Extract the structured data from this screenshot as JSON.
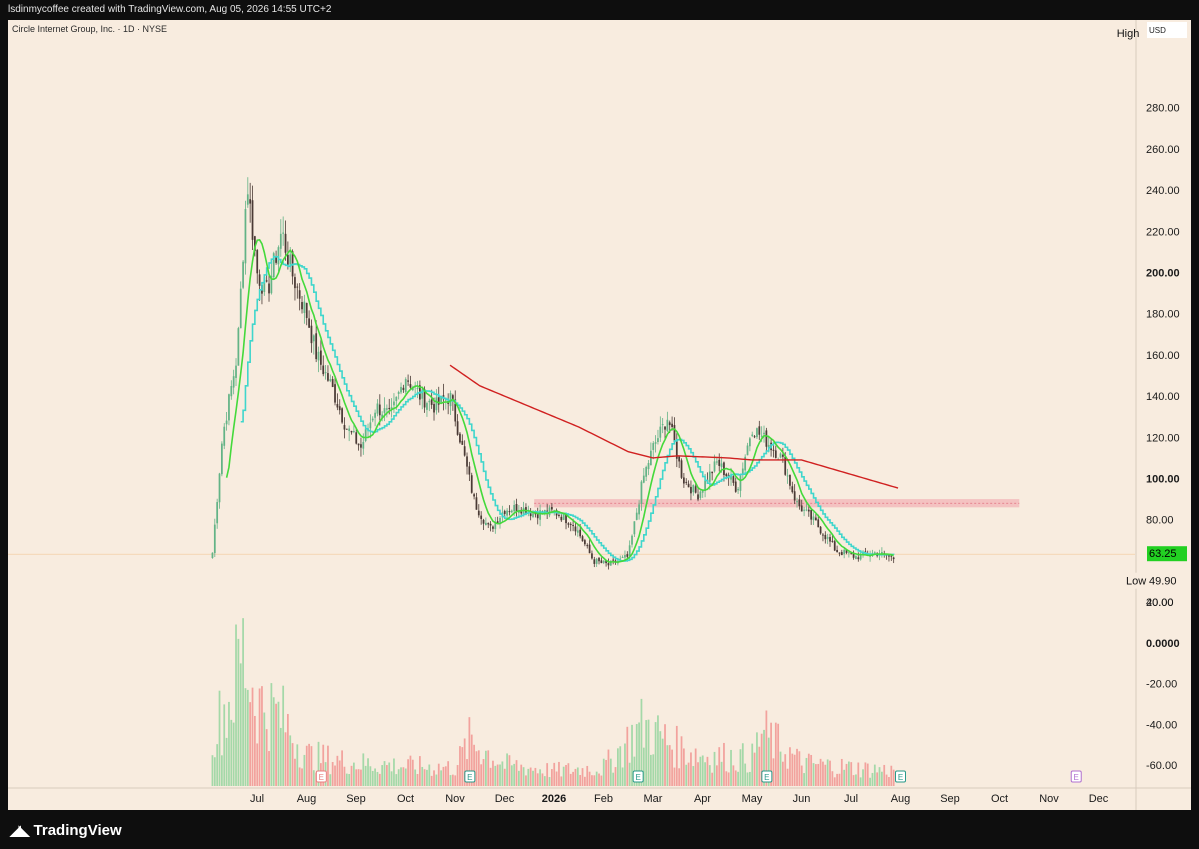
{
  "header": {
    "attribution": "lsdinmycoffee created with TradingView.com, Aug 05, 2026 14:55 UTC+2"
  },
  "chart_title": "Circle Internet Group, Inc. · 1D · NYSE",
  "footer": {
    "brand": "TradingView"
  },
  "colors": {
    "background": "#f8ecdf",
    "up": "#63b386",
    "down": "#4a3a35",
    "ma_fast": "#44d93b",
    "ma_slow": "#3fd6cc",
    "ma_long": "#d02020",
    "zone": "#f0a0a8",
    "last_price_badge": "#22d022"
  },
  "chart_data": {
    "type": "candlestick",
    "price_axis": {
      "currency": "USD",
      "ticks": [
        280,
        260,
        240,
        220,
        200,
        180,
        160,
        140,
        120,
        100,
        80,
        40,
        20,
        0,
        -20,
        -40,
        -60
      ],
      "tick_labels": [
        "280.00",
        "260.00",
        "240.00",
        "220.00",
        "200.00",
        "180.00",
        "160.00",
        "140.00",
        "120.00",
        "100.00",
        "80.00",
        "40.00",
        "20.00",
        "0.0000",
        "-20.00",
        "-40.00",
        "-60.00"
      ],
      "bold_ticks": [
        200,
        100,
        0
      ],
      "high_label": "High",
      "low_label": "Low",
      "low_value": "49.90",
      "last_price": "63.25",
      "last_price_value": 63.25
    },
    "time_axis": {
      "labels": [
        "Jul",
        "Aug",
        "Sep",
        "Oct",
        "Nov",
        "Dec",
        "2026",
        "Feb",
        "Mar",
        "Apr",
        "May",
        "Jun",
        "Jul",
        "Aug",
        "Sep",
        "Oct",
        "Nov",
        "Dec"
      ],
      "positions": [
        0,
        1,
        2,
        3,
        4,
        5,
        6,
        7,
        8,
        9,
        10,
        11,
        12,
        13,
        14,
        15,
        16,
        17
      ],
      "bold": [
        "2026"
      ]
    },
    "price_path_monthly": [
      {
        "m": -0.9,
        "c": 64
      },
      {
        "m": -0.7,
        "c": 120
      },
      {
        "m": -0.4,
        "c": 160
      },
      {
        "m": -0.2,
        "c": 245
      },
      {
        "m": 0.0,
        "c": 200
      },
      {
        "m": 0.2,
        "c": 190
      },
      {
        "m": 0.5,
        "c": 220
      },
      {
        "m": 0.7,
        "c": 200
      },
      {
        "m": 1.0,
        "c": 180
      },
      {
        "m": 1.2,
        "c": 160
      },
      {
        "m": 1.5,
        "c": 145
      },
      {
        "m": 1.8,
        "c": 125
      },
      {
        "m": 2.1,
        "c": 115
      },
      {
        "m": 2.4,
        "c": 135
      },
      {
        "m": 2.7,
        "c": 130
      },
      {
        "m": 3.0,
        "c": 150
      },
      {
        "m": 3.3,
        "c": 140
      },
      {
        "m": 3.6,
        "c": 135
      },
      {
        "m": 3.9,
        "c": 140
      },
      {
        "m": 4.1,
        "c": 120
      },
      {
        "m": 4.4,
        "c": 88
      },
      {
        "m": 4.7,
        "c": 75
      },
      {
        "m": 5.0,
        "c": 85
      },
      {
        "m": 5.3,
        "c": 86
      },
      {
        "m": 5.6,
        "c": 83
      },
      {
        "m": 6.0,
        "c": 84
      },
      {
        "m": 6.4,
        "c": 78
      },
      {
        "m": 6.8,
        "c": 60
      },
      {
        "m": 7.1,
        "c": 58
      },
      {
        "m": 7.5,
        "c": 62
      },
      {
        "m": 7.8,
        "c": 100
      },
      {
        "m": 8.0,
        "c": 115
      },
      {
        "m": 8.3,
        "c": 130
      },
      {
        "m": 8.6,
        "c": 100
      },
      {
        "m": 8.9,
        "c": 92
      },
      {
        "m": 9.3,
        "c": 108
      },
      {
        "m": 9.7,
        "c": 95
      },
      {
        "m": 10.0,
        "c": 125
      },
      {
        "m": 10.3,
        "c": 118
      },
      {
        "m": 10.6,
        "c": 110
      },
      {
        "m": 10.9,
        "c": 88
      },
      {
        "m": 11.3,
        "c": 78
      },
      {
        "m": 11.7,
        "c": 65
      },
      {
        "m": 12.1,
        "c": 62
      },
      {
        "m": 12.5,
        "c": 64
      },
      {
        "m": 12.9,
        "c": 61
      }
    ],
    "ma_long_path": [
      {
        "m": 3.9,
        "v": 155
      },
      {
        "m": 4.5,
        "v": 145
      },
      {
        "m": 5.5,
        "v": 135
      },
      {
        "m": 6.5,
        "v": 125
      },
      {
        "m": 7.5,
        "v": 113
      },
      {
        "m": 8.0,
        "v": 110
      },
      {
        "m": 8.5,
        "v": 111
      },
      {
        "m": 9.5,
        "v": 110
      },
      {
        "m": 10.0,
        "v": 109
      },
      {
        "m": 11.0,
        "v": 109
      },
      {
        "m": 12.0,
        "v": 102
      },
      {
        "m": 13.0,
        "v": 95
      }
    ],
    "zone": {
      "low": 86,
      "high": 90,
      "m_start": 5.6,
      "m_end": 15.4
    },
    "volume_shape_monthly": [
      {
        "m": -0.8,
        "v": 40
      },
      {
        "m": -0.5,
        "v": 60
      },
      {
        "m": -0.3,
        "v": 90
      },
      {
        "m": 0.0,
        "v": 55
      },
      {
        "m": 0.5,
        "v": 45
      },
      {
        "m": 1.0,
        "v": 20
      },
      {
        "m": 2.0,
        "v": 15
      },
      {
        "m": 3.0,
        "v": 13
      },
      {
        "m": 4.0,
        "v": 12
      },
      {
        "m": 4.3,
        "v": 30
      },
      {
        "m": 5.0,
        "v": 14
      },
      {
        "m": 6.0,
        "v": 10
      },
      {
        "m": 7.0,
        "v": 12
      },
      {
        "m": 7.8,
        "v": 40
      },
      {
        "m": 8.5,
        "v": 25
      },
      {
        "m": 9.0,
        "v": 20
      },
      {
        "m": 10.0,
        "v": 18
      },
      {
        "m": 10.2,
        "v": 35
      },
      {
        "m": 11.0,
        "v": 15
      },
      {
        "m": 12.0,
        "v": 12
      },
      {
        "m": 12.9,
        "v": 10
      }
    ],
    "earnings_markers": [
      {
        "m": 1.3,
        "color": "#e88080"
      },
      {
        "m": 4.3,
        "color": "#2a9a8a"
      },
      {
        "m": 7.7,
        "color": "#2a9a8a"
      },
      {
        "m": 10.3,
        "color": "#2a9a8a"
      },
      {
        "m": 13.0,
        "color": "#2a9a8a"
      },
      {
        "m": 16.55,
        "color": "#b070d0"
      }
    ],
    "earnings_label": "E"
  }
}
